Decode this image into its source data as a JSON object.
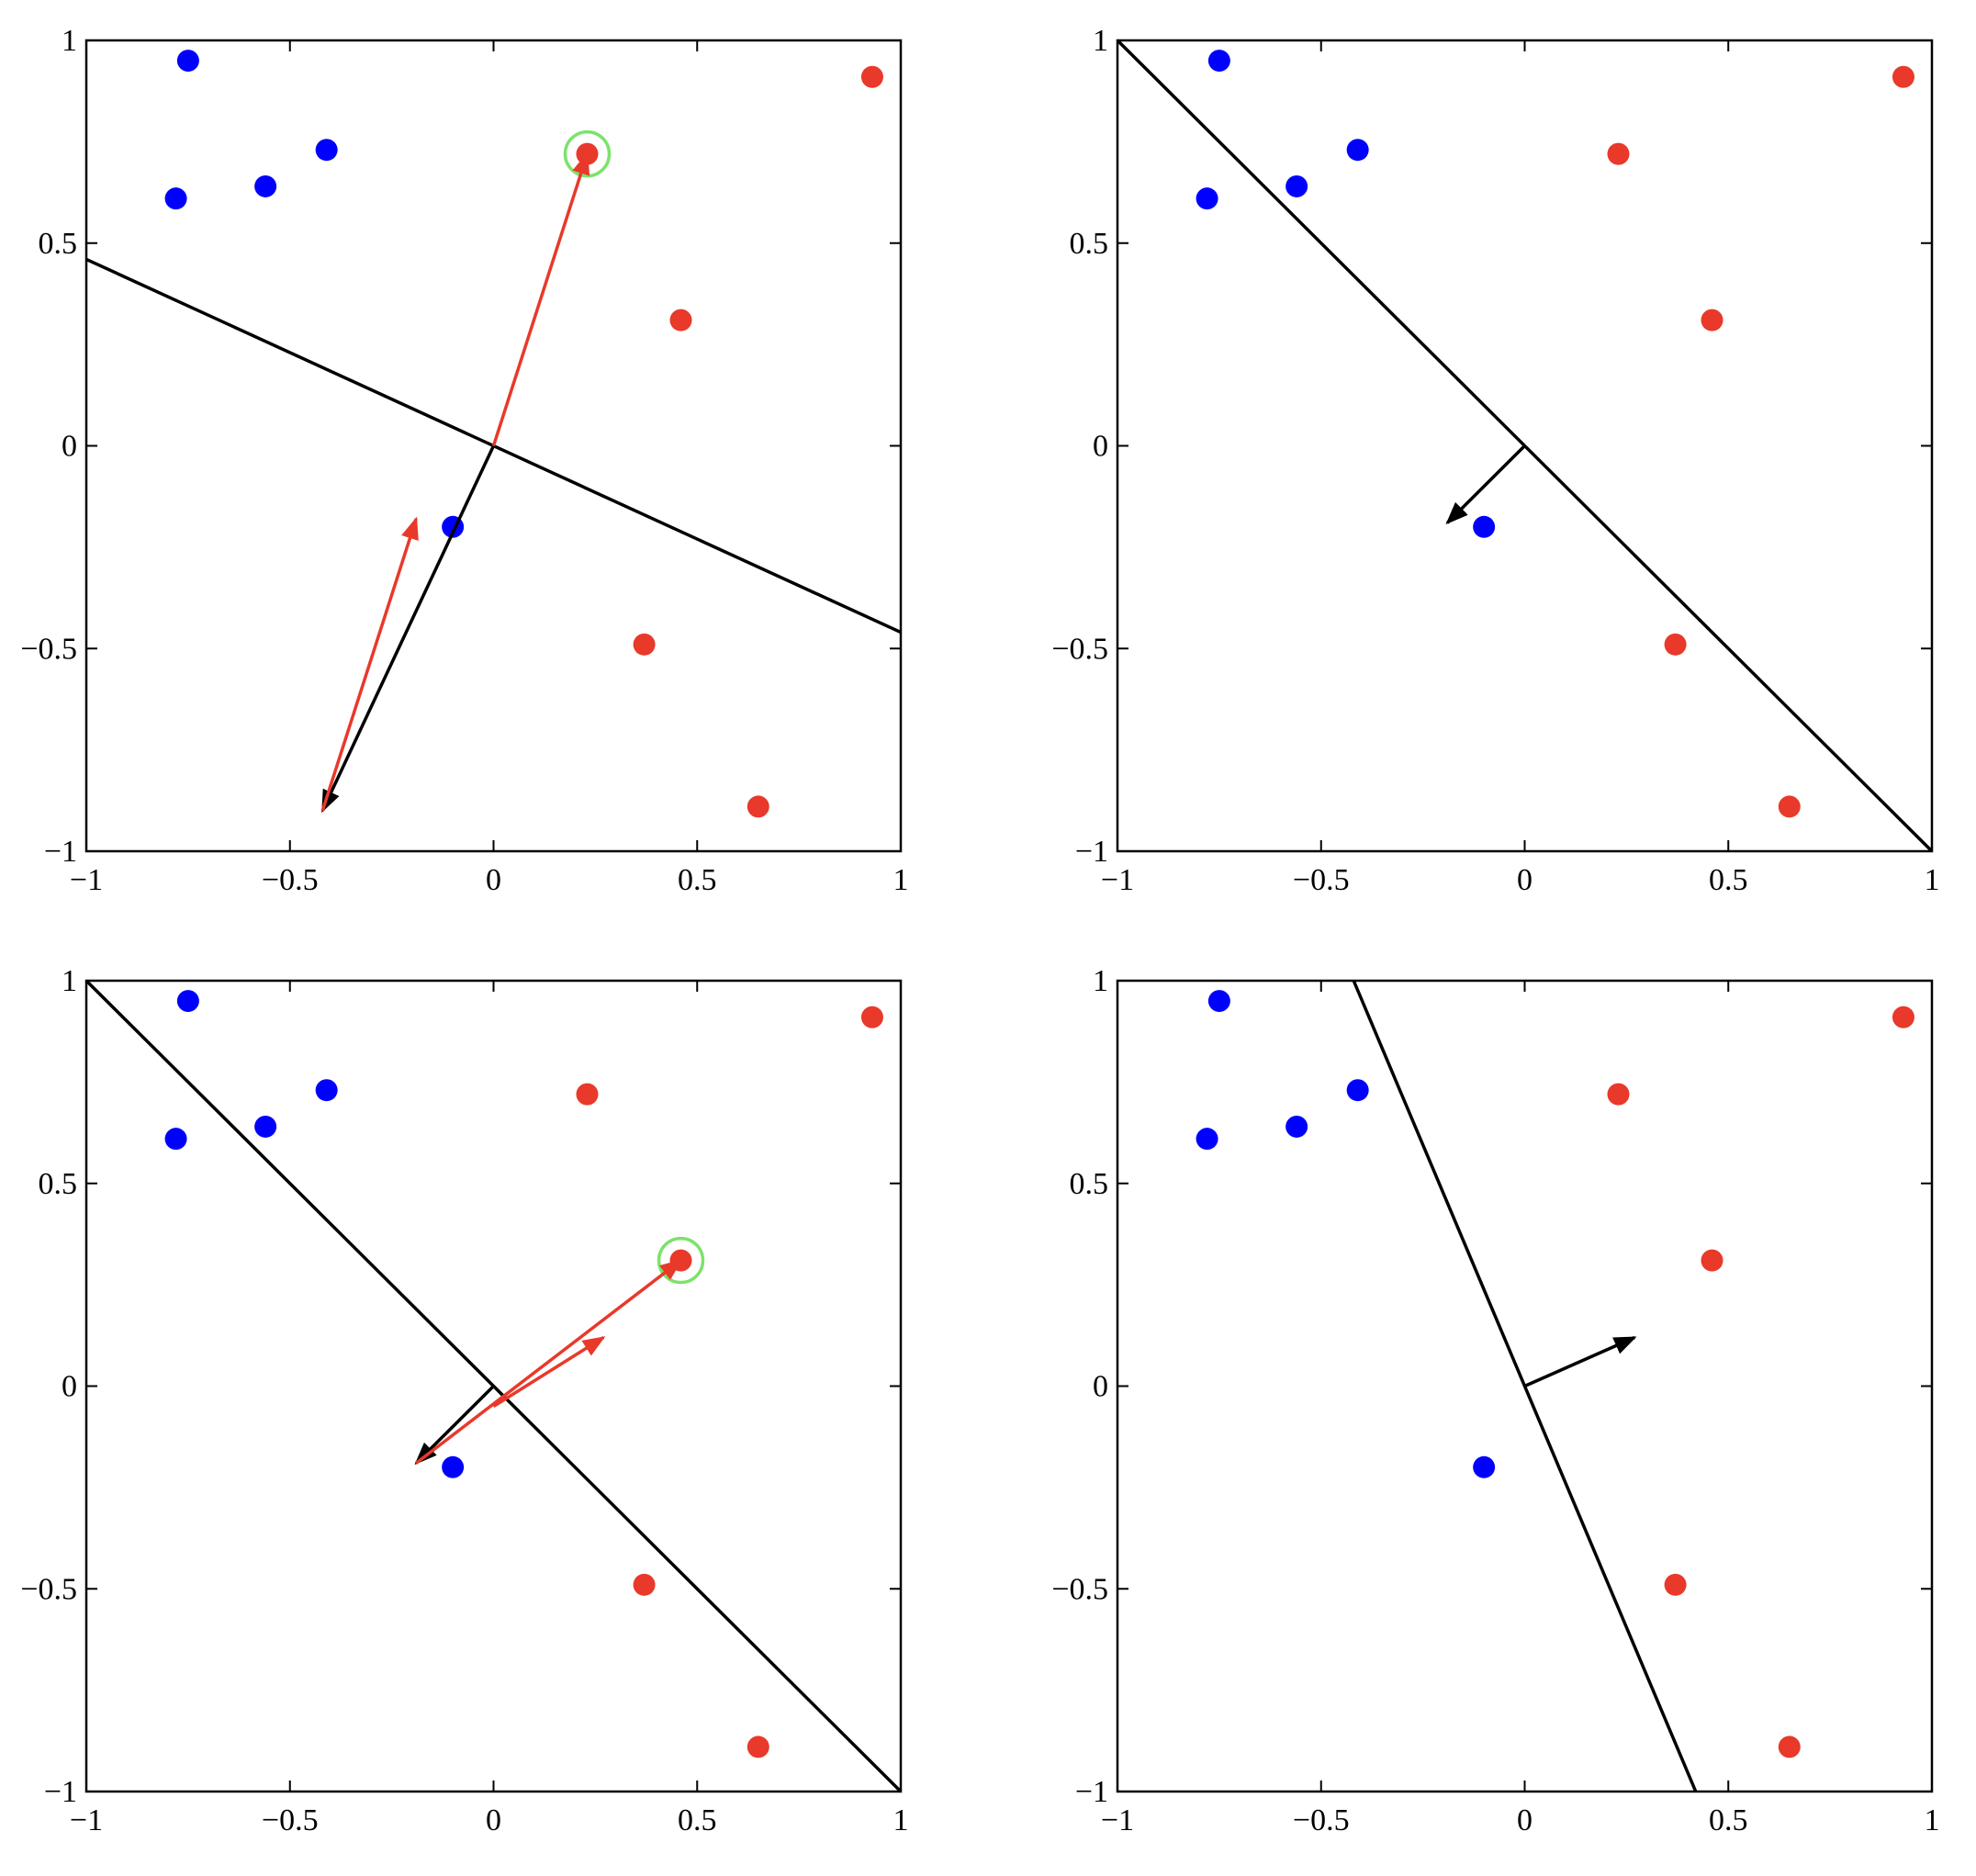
{
  "chart_data": [
    {
      "type": "scatter",
      "xlim": [
        -1,
        1
      ],
      "ylim": [
        -1,
        1
      ],
      "xticks": [
        {
          "value": -1,
          "label": "−1"
        },
        {
          "value": -0.5,
          "label": "−0.5"
        },
        0,
        0.5,
        1
      ],
      "yticks": [
        {
          "value": -1,
          "label": "−1"
        },
        {
          "value": -0.5,
          "label": "−0.5"
        },
        0,
        0.5,
        1
      ],
      "series": [
        {
          "color": "#0000ff",
          "x": [
            -0.75,
            -0.78,
            -0.56,
            -0.41,
            -0.1
          ],
          "y": [
            0.95,
            0.61,
            0.64,
            0.73,
            -0.2
          ]
        },
        {
          "color": "#e8392a",
          "x": [
            0.93,
            0.23,
            0.46,
            0.37,
            0.65
          ],
          "y": [
            0.91,
            0.72,
            0.31,
            -0.49,
            -0.89
          ]
        }
      ],
      "lines": [
        {
          "color": "#000000",
          "x": [
            -1,
            1
          ],
          "y": [
            0.46,
            -0.46
          ]
        }
      ],
      "arrows": [
        {
          "color": "#000000",
          "x": [
            0,
            -0.42
          ],
          "y": [
            0,
            -0.9
          ]
        },
        {
          "color": "#e8392a",
          "x": [
            0,
            0.23
          ],
          "y": [
            0,
            0.72
          ]
        },
        {
          "color": "#e8392a",
          "x": [
            -0.42,
            -0.19
          ],
          "y": [
            -0.9,
            -0.18
          ]
        }
      ],
      "highlight": {
        "color": "#7be36b",
        "x": 0.23,
        "y": 0.72
      }
    },
    {
      "type": "scatter",
      "xlim": [
        -1,
        1
      ],
      "ylim": [
        -1,
        1
      ],
      "xticks": [
        {
          "value": -1,
          "label": "−1"
        },
        {
          "value": -0.5,
          "label": "−0.5"
        },
        0,
        0.5,
        1
      ],
      "yticks": [
        {
          "value": -1,
          "label": "−1"
        },
        {
          "value": -0.5,
          "label": "−0.5"
        },
        0,
        0.5,
        1
      ],
      "series": [
        {
          "color": "#0000ff",
          "x": [
            -0.75,
            -0.78,
            -0.56,
            -0.41,
            -0.1
          ],
          "y": [
            0.95,
            0.61,
            0.64,
            0.73,
            -0.2
          ]
        },
        {
          "color": "#e8392a",
          "x": [
            0.93,
            0.23,
            0.46,
            0.37,
            0.65
          ],
          "y": [
            0.91,
            0.72,
            0.31,
            -0.49,
            -0.89
          ]
        }
      ],
      "lines": [
        {
          "color": "#000000",
          "x": [
            -1,
            1
          ],
          "y": [
            1,
            -1
          ]
        }
      ],
      "arrows": [
        {
          "color": "#000000",
          "x": [
            0,
            -0.19
          ],
          "y": [
            0,
            -0.19
          ]
        }
      ]
    },
    {
      "type": "scatter",
      "xlim": [
        -1,
        1
      ],
      "ylim": [
        -1,
        1
      ],
      "xticks": [
        {
          "value": -1,
          "label": "−1"
        },
        {
          "value": -0.5,
          "label": "−0.5"
        },
        0,
        0.5,
        1
      ],
      "yticks": [
        {
          "value": -1,
          "label": "−1"
        },
        {
          "value": -0.5,
          "label": "−0.5"
        },
        0,
        0.5,
        1
      ],
      "series": [
        {
          "color": "#0000ff",
          "x": [
            -0.75,
            -0.78,
            -0.56,
            -0.41,
            -0.1
          ],
          "y": [
            0.95,
            0.61,
            0.64,
            0.73,
            -0.2
          ]
        },
        {
          "color": "#e8392a",
          "x": [
            0.93,
            0.23,
            0.46,
            0.37,
            0.65
          ],
          "y": [
            0.91,
            0.72,
            0.31,
            -0.49,
            -0.89
          ]
        }
      ],
      "lines": [
        {
          "color": "#000000",
          "x": [
            -1,
            1
          ],
          "y": [
            1,
            -1
          ]
        }
      ],
      "arrows": [
        {
          "color": "#000000",
          "x": [
            0,
            -0.19
          ],
          "y": [
            0,
            -0.19
          ]
        },
        {
          "color": "#e8392a",
          "x": [
            -0.19,
            0.46
          ],
          "y": [
            -0.19,
            0.31
          ]
        },
        {
          "color": "#e8392a",
          "x": [
            0.0,
            0.27
          ],
          "y": [
            -0.05,
            0.12
          ]
        }
      ],
      "highlight": {
        "color": "#7be36b",
        "x": 0.46,
        "y": 0.31
      }
    },
    {
      "type": "scatter",
      "xlim": [
        -1,
        1
      ],
      "ylim": [
        -1,
        1
      ],
      "xticks": [
        {
          "value": -1,
          "label": "−1"
        },
        {
          "value": -0.5,
          "label": "−0.5"
        },
        0,
        0.5,
        1
      ],
      "yticks": [
        {
          "value": -1,
          "label": "−1"
        },
        {
          "value": -0.5,
          "label": "−0.5"
        },
        0,
        0.5,
        1
      ],
      "series": [
        {
          "color": "#0000ff",
          "x": [
            -0.75,
            -0.78,
            -0.56,
            -0.41,
            -0.1
          ],
          "y": [
            0.95,
            0.61,
            0.64,
            0.73,
            -0.2
          ]
        },
        {
          "color": "#e8392a",
          "x": [
            0.93,
            0.23,
            0.46,
            0.37,
            0.65
          ],
          "y": [
            0.91,
            0.72,
            0.31,
            -0.49,
            -0.89
          ]
        }
      ],
      "lines": [
        {
          "color": "#000000",
          "x": [
            -0.42,
            0.42
          ],
          "y": [
            1,
            -1
          ]
        }
      ],
      "arrows": [
        {
          "color": "#000000",
          "x": [
            0,
            0.27
          ],
          "y": [
            0,
            0.12
          ]
        }
      ]
    }
  ]
}
